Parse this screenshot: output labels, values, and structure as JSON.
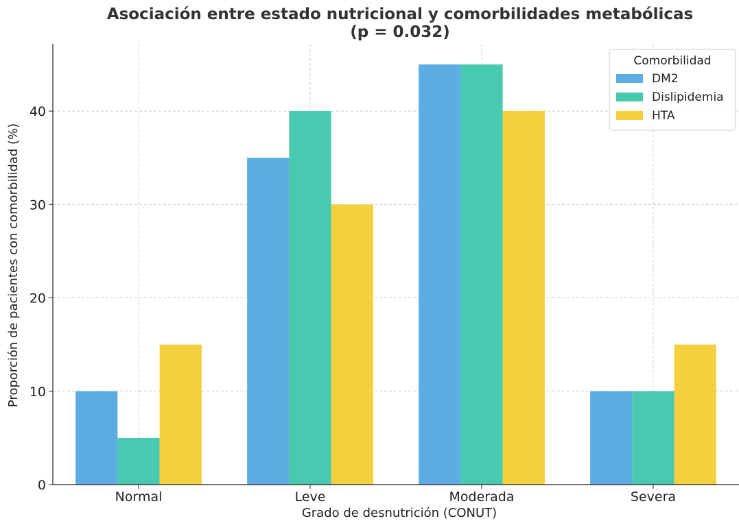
{
  "chart_data": {
    "type": "bar",
    "title": "Asociación entre estado nutricional y comorbilidades metabólicas",
    "subtitle": "(p = 0.032)",
    "xlabel": "Grado de desnutrición (CONUT)",
    "ylabel": "Proporción de pacientes con comorbilidad (%)",
    "categories": [
      "Normal",
      "Leve",
      "Moderada",
      "Severa"
    ],
    "series": [
      {
        "name": "DM2",
        "values": [
          10,
          35,
          45,
          10
        ],
        "color": "#5DADE2"
      },
      {
        "name": "Dislipidemia",
        "values": [
          5,
          40,
          45,
          10
        ],
        "color": "#48C9B0"
      },
      {
        "name": "HTA",
        "values": [
          15,
          30,
          40,
          15
        ],
        "color": "#F4D03F"
      }
    ],
    "ylim": [
      0,
      47.2
    ],
    "yticks": [
      0,
      10,
      20,
      30,
      40
    ],
    "grid": true,
    "legend": {
      "title": "Comorbilidad",
      "position": "top-right"
    }
  }
}
